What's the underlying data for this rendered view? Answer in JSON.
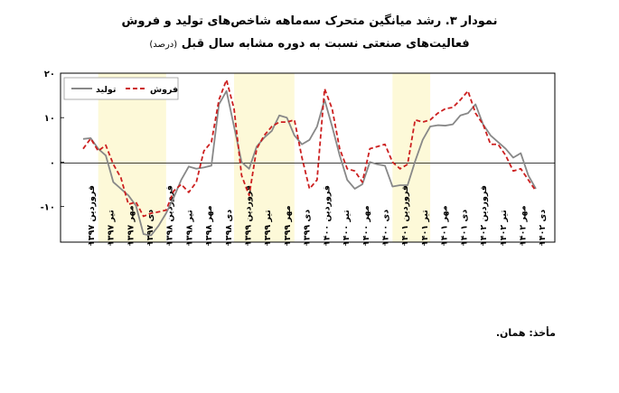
{
  "title_line1": "نمودار ۳. رشد میانگین متحرک سه‌ماهه شاخص‌های تولید و فروش",
  "title_line2": "فعالیت‌های صنعتی نسبت به دوره مشابه سال قبل",
  "unit": "(درصد)",
  "source": "مأخذ: همان.",
  "chart_data": {
    "type": "line",
    "ylim": [
      -18,
      20
    ],
    "yticks": [
      20,
      10,
      0,
      -10
    ],
    "ytick_labels": [
      "۲۰",
      "۱۰",
      "۰",
      "-۱۰"
    ],
    "grid": false,
    "legend_position": "top-left",
    "x_count": 61,
    "x_tick_labels": [
      "فروردین ۱۳۹۷",
      "تیر ۱۳۹۷",
      "مهر ۱۳۹۷",
      "دی ۱۳۹۷",
      "فروردین ۱۳۹۸",
      "تیر ۱۳۹۸",
      "مهر ۱۳۹۸",
      "دی ۱۳۹۸",
      "فروردین ۱۳۹۹",
      "تیر ۱۳۹۹",
      "مهر ۱۳۹۹",
      "دی ۱۳۹۹",
      "فروردین ۱۴۰۰",
      "تیر ۱۴۰۰",
      "مهر ۱۴۰۰",
      "دی ۱۴۰۰",
      "فروردین ۱۴۰۱",
      "تیر ۱۴۰۱",
      "مهر ۱۴۰۱",
      "دی ۱۴۰۱",
      "فروردین ۱۴۰۲",
      "تیر ۱۴۰۲",
      "مهر ۱۴۰۲",
      "دی ۱۴۰۲"
    ],
    "shaded_ranges": [
      [
        2,
        11
      ],
      [
        20,
        28
      ],
      [
        41,
        46
      ]
    ],
    "shade_color": "#fdf9d8",
    "series": [
      {
        "name": "تولید",
        "color": "#888888",
        "dash": false,
        "values": [
          5.2,
          5.4,
          3,
          1.5,
          -4.5,
          -6,
          -7.5,
          -9.8,
          -16.2,
          -16.5,
          -14.3,
          -11.5,
          -8,
          -4,
          -1,
          -1.5,
          -1.2,
          -0.8,
          13,
          16,
          8,
          0,
          -1.5,
          3.5,
          5.5,
          7,
          10.5,
          10,
          6,
          4,
          5,
          8,
          14,
          8,
          1.5,
          -4,
          -6,
          -5,
          0,
          -0.5,
          -0.8,
          -5.5,
          -5.2,
          -5.2,
          0.2,
          5,
          8,
          8.3,
          8.2,
          8.5,
          10.5,
          11,
          13,
          8.5,
          6,
          4.5,
          3,
          1,
          2,
          -3,
          -6
        ]
      },
      {
        "name": "فروش",
        "color": "#cc1f1f",
        "dash": true,
        "values": [
          3,
          5.3,
          2.5,
          3.8,
          -0.5,
          -3.5,
          -9.5,
          -9,
          -12.2,
          -11.5,
          -11.2,
          -10.8,
          -6.5,
          -5,
          -6.8,
          -4.5,
          2.5,
          4.5,
          14,
          18.5,
          12,
          -3,
          -7.5,
          3,
          6,
          8,
          9,
          9,
          9.5,
          1,
          -6,
          -4,
          16.5,
          12,
          3,
          -1.5,
          -2,
          -4.5,
          3,
          3.5,
          4,
          0,
          -1.5,
          -0.5,
          9.5,
          9,
          9.5,
          11,
          12,
          12.3,
          14,
          16,
          11,
          8.5,
          4,
          4,
          1.5,
          -2,
          -1.5,
          -4,
          -6.5
        ]
      }
    ]
  }
}
